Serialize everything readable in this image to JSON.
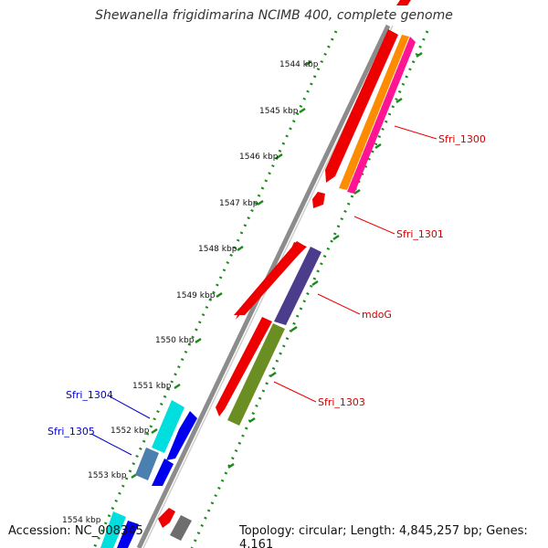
{
  "title": "Shewanella frigidimarina NCIMB 400, complete genome",
  "footer": {
    "accession": "Accession: NC_008345",
    "topology": "Topology: circular; Length: 4,845,257 bp; Genes: 4,161"
  },
  "ticks": [
    "1544 kbp",
    "1545 kbp",
    "1546 kbp",
    "1547 kbp",
    "1548 kbp",
    "1549 kbp",
    "1550 kbp",
    "1551 kbp",
    "1552 kbp",
    "1553 kbp",
    "1554 kbp"
  ],
  "gene_labels": [
    "Sfri_1300",
    "Sfri_1301",
    "mdoG",
    "Sfri_1303",
    "Sfri_1304",
    "Sfri_1305"
  ],
  "colors": {
    "backbone": "#8c8c8c",
    "cds": "#ee0000",
    "label_red": "#cc0000",
    "label_blue": "#0000cc",
    "dots": "#1a8a1a",
    "gene_orange": "#ff8c00",
    "gene_pink": "#ff1493",
    "gene_purple": "#4b3c8c",
    "gene_olive": "#6b8e23",
    "gene_cyan": "#00dede",
    "gene_blue": "#0000ee",
    "gene_steel": "#4a7fb0",
    "gene_gray": "#6e6e6e"
  }
}
